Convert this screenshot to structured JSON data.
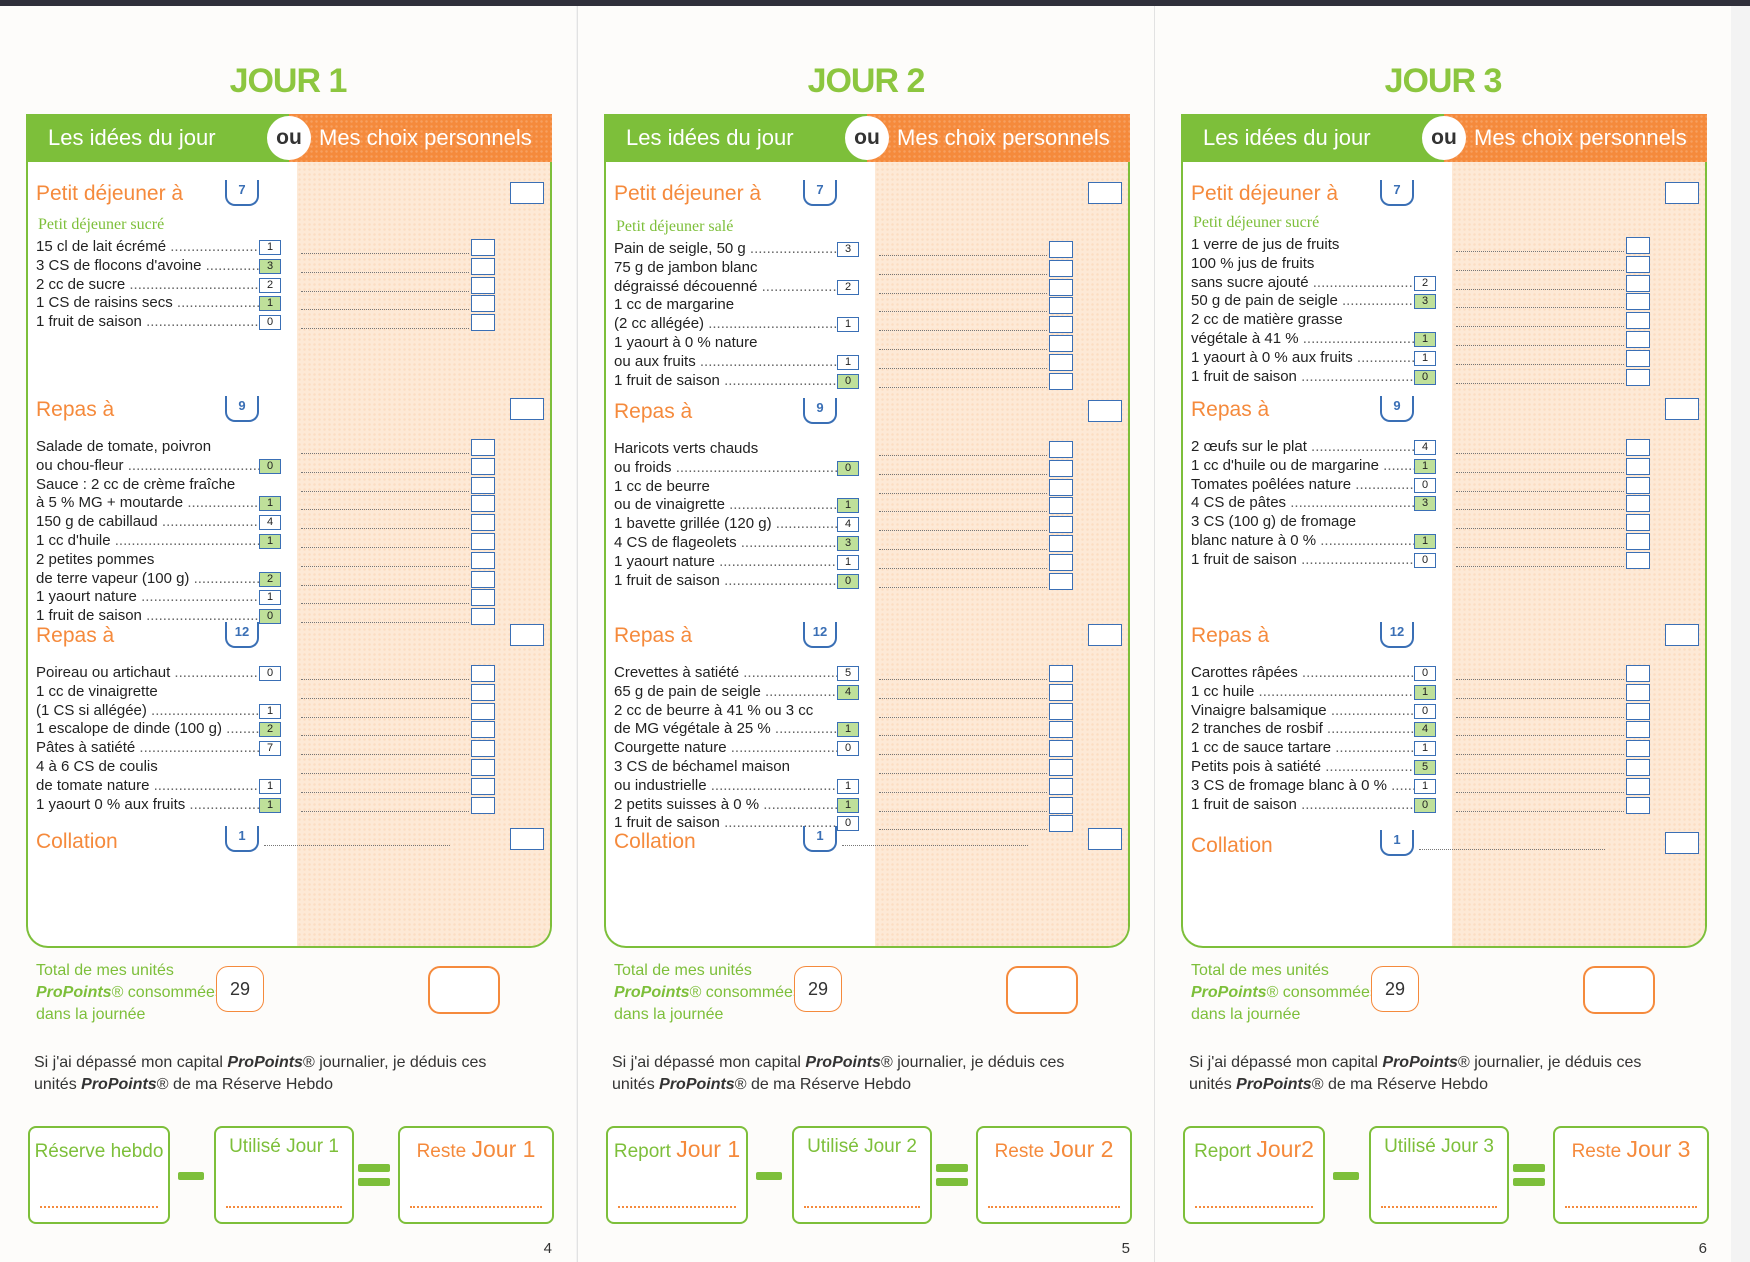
{
  "pages": [
    {
      "title": "JOUR 1",
      "tab_left": "Les idées du jour",
      "tab_ou": "ou",
      "tab_right": "Mes choix personnels",
      "meals": [
        {
          "label": "Petit déjeuner à",
          "units": "7",
          "subtitle": "Petit déjeuner sucré",
          "items": [
            {
              "text": "15 cl de lait écrémé",
              "pts": "1",
              "dots": true
            },
            {
              "text": "3 CS de flocons d'avoine",
              "pts": "3",
              "dots": true
            },
            {
              "text": "2 cc de sucre",
              "pts": "2",
              "dots": true
            },
            {
              "text": "1 CS de raisins secs",
              "pts": "1",
              "dots": true
            },
            {
              "text": "1 fruit de saison",
              "pts": "0",
              "dots": true
            }
          ]
        },
        {
          "label": "Repas à",
          "units": "9",
          "subtitle": "",
          "items": [
            {
              "text": "Salade de tomate, poivron",
              "pts": "",
              "dots": false
            },
            {
              "text": "ou chou-fleur",
              "pts": "0",
              "dots": true
            },
            {
              "text": "Sauce : 2 cc de crème fraîche",
              "pts": "",
              "dots": false
            },
            {
              "text": "à 5 % MG + moutarde",
              "pts": "1",
              "dots": true
            },
            {
              "text": "150 g de cabillaud",
              "pts": "4",
              "dots": true
            },
            {
              "text": "1 cc d'huile",
              "pts": "1",
              "dots": true
            },
            {
              "text": "2 petites pommes",
              "pts": "",
              "dots": false
            },
            {
              "text": "de terre vapeur (100 g)",
              "pts": "2",
              "dots": true
            },
            {
              "text": "1 yaourt nature",
              "pts": "1",
              "dots": true
            },
            {
              "text": "1 fruit de saison",
              "pts": "0",
              "dots": true
            }
          ]
        },
        {
          "label": "Repas à",
          "units": "12",
          "subtitle": "",
          "items": [
            {
              "text": "Poireau ou artichaut",
              "pts": "0",
              "dots": true
            },
            {
              "text": "1 cc de vinaigrette",
              "pts": "",
              "dots": false
            },
            {
              "text": "(1 CS si allégée)",
              "pts": "1",
              "dots": true
            },
            {
              "text": "1 escalope de dinde (100 g)",
              "pts": "2",
              "dots": true
            },
            {
              "text": "Pâtes à satiété",
              "pts": "7",
              "dots": true
            },
            {
              "text": "4 à 6 CS de coulis",
              "pts": "",
              "dots": false
            },
            {
              "text": "de tomate nature",
              "pts": "1",
              "dots": true
            },
            {
              "text": "1 yaourt 0 % aux fruits",
              "pts": "1",
              "dots": true
            }
          ]
        }
      ],
      "collation_label": "Collation",
      "collation_units": "1",
      "total_line1": "Total de mes unités",
      "total_brand": "ProPoints",
      "total_line2": "® consommées",
      "total_line3": "dans la journée",
      "total_value": "29",
      "note_a": "Si j'ai dépassé mon capital ",
      "note_brand": "ProPoints",
      "note_b": "® journalier, je déduis ces",
      "note_c": "unités ",
      "note_brand2": "ProPoints",
      "note_d": "® de ma Réserve Hebdo",
      "box1_a": "Réserve hebdo",
      "box1_b": "",
      "box2": "Utilisé Jour 1",
      "box3_a": "Reste ",
      "box3_b": "Jour 1",
      "page_number": "4"
    },
    {
      "title": "JOUR 2",
      "tab_left": "Les idées du jour",
      "tab_ou": "ou",
      "tab_right": "Mes choix personnels",
      "meals": [
        {
          "label": "Petit déjeuner à",
          "units": "7",
          "subtitle": "Petit déjeuner salé",
          "items": [
            {
              "text": "Pain de seigle, 50 g",
              "pts": "3",
              "dots": true
            },
            {
              "text": "75 g de jambon blanc",
              "pts": "",
              "dots": false
            },
            {
              "text": "dégraissé découenné",
              "pts": "2",
              "dots": true
            },
            {
              "text": "1 cc de margarine",
              "pts": "",
              "dots": false
            },
            {
              "text": "(2 cc allégée)",
              "pts": "1",
              "dots": true
            },
            {
              "text": "1 yaourt à 0 % nature",
              "pts": "",
              "dots": false
            },
            {
              "text": "ou aux fruits",
              "pts": "1",
              "dots": true
            },
            {
              "text": "1 fruit de saison",
              "pts": "0",
              "dots": true
            }
          ]
        },
        {
          "label": "Repas à",
          "units": "9",
          "subtitle": "",
          "items": [
            {
              "text": "Haricots verts chauds",
              "pts": "",
              "dots": false
            },
            {
              "text": "ou froids",
              "pts": "0",
              "dots": true
            },
            {
              "text": "1 cc de beurre",
              "pts": "",
              "dots": false
            },
            {
              "text": "ou de vinaigrette",
              "pts": "1",
              "dots": true
            },
            {
              "text": "1 bavette grillée (120 g)",
              "pts": "4",
              "dots": true
            },
            {
              "text": "4 CS de flageolets",
              "pts": "3",
              "dots": true
            },
            {
              "text": "1 yaourt nature",
              "pts": "1",
              "dots": true
            },
            {
              "text": "1 fruit de saison",
              "pts": "0",
              "dots": true
            }
          ]
        },
        {
          "label": "Repas à",
          "units": "12",
          "subtitle": "",
          "items": [
            {
              "text": "Crevettes à satiété",
              "pts": "5",
              "dots": true
            },
            {
              "text": "65 g de pain de seigle",
              "pts": "4",
              "dots": true
            },
            {
              "text": "2 cc de beurre à 41 % ou 3 cc",
              "pts": "",
              "dots": false
            },
            {
              "text": "de MG végétale à 25 %",
              "pts": "1",
              "dots": true
            },
            {
              "text": "Courgette nature",
              "pts": "0",
              "dots": true
            },
            {
              "text": "3 CS de béchamel maison",
              "pts": "",
              "dots": false
            },
            {
              "text": "ou industrielle",
              "pts": "1",
              "dots": true
            },
            {
              "text": "2 petits suisses à 0 %",
              "pts": "1",
              "dots": true
            },
            {
              "text": "1 fruit de saison",
              "pts": "0",
              "dots": true
            }
          ]
        }
      ],
      "collation_label": "Collation",
      "collation_units": "1",
      "total_line1": "Total de mes unités",
      "total_brand": "ProPoints",
      "total_line2": "® consommées",
      "total_line3": "dans la journée",
      "total_value": "29",
      "note_a": "Si j'ai dépassé mon capital ",
      "note_brand": "ProPoints",
      "note_b": "® journalier, je déduis ces",
      "note_c": "unités ",
      "note_brand2": "ProPoints",
      "note_d": "® de ma Réserve Hebdo",
      "box1_a": "Report ",
      "box1_b": "Jour 1",
      "box2": "Utilisé Jour 2",
      "box3_a": "Reste ",
      "box3_b": "Jour 2",
      "page_number": "5"
    },
    {
      "title": "JOUR 3",
      "tab_left": "Les idées du jour",
      "tab_ou": "ou",
      "tab_right": "Mes choix personnels",
      "meals": [
        {
          "label": "Petit déjeuner à",
          "units": "7",
          "subtitle": "Petit déjeuner sucré",
          "items": [
            {
              "text": "1 verre de jus de fruits",
              "pts": "",
              "dots": false
            },
            {
              "text": "100 % jus de fruits",
              "pts": "",
              "dots": false
            },
            {
              "text": "sans sucre ajouté",
              "pts": "2",
              "dots": true
            },
            {
              "text": "50 g de pain de seigle",
              "pts": "3",
              "dots": true
            },
            {
              "text": "2 cc de matière grasse",
              "pts": "",
              "dots": false
            },
            {
              "text": "végétale à 41 %",
              "pts": "1",
              "dots": true
            },
            {
              "text": "1 yaourt à 0 % aux fruits",
              "pts": "1",
              "dots": true
            },
            {
              "text": "1 fruit de saison",
              "pts": "0",
              "dots": true
            }
          ]
        },
        {
          "label": "Repas à",
          "units": "9",
          "subtitle": "",
          "items": [
            {
              "text": "2 œufs sur le plat",
              "pts": "4",
              "dots": true
            },
            {
              "text": "1 cc d'huile ou de margarine",
              "pts": "1",
              "dots": true
            },
            {
              "text": "Tomates poêlées nature",
              "pts": "0",
              "dots": true
            },
            {
              "text": "4 CS de pâtes",
              "pts": "3",
              "dots": true
            },
            {
              "text": "3 CS (100 g) de fromage",
              "pts": "",
              "dots": false
            },
            {
              "text": "blanc nature à 0 %",
              "pts": "1",
              "dots": true
            },
            {
              "text": "1 fruit de saison",
              "pts": "0",
              "dots": true
            }
          ]
        },
        {
          "label": "Repas à",
          "units": "12",
          "subtitle": "",
          "items": [
            {
              "text": "Carottes râpées",
              "pts": "0",
              "dots": true
            },
            {
              "text": "1 cc huile",
              "pts": "1",
              "dots": true
            },
            {
              "text": "Vinaigre balsamique",
              "pts": "0",
              "dots": true
            },
            {
              "text": "2 tranches de rosbif",
              "pts": "4",
              "dots": true
            },
            {
              "text": "1 cc de sauce tartare",
              "pts": "1",
              "dots": true
            },
            {
              "text": "Petits pois à satiété",
              "pts": "5",
              "dots": true
            },
            {
              "text": "3 CS de fromage blanc à 0 %",
              "pts": "1",
              "dots": true
            },
            {
              "text": "1 fruit de saison",
              "pts": "0",
              "dots": true
            }
          ]
        }
      ],
      "collation_label": "Collation",
      "collation_units": "1",
      "total_line1": "Total de mes unités",
      "total_brand": "ProPoints",
      "total_line2": "® consommées",
      "total_line3": "dans la journée",
      "total_value": "29",
      "note_a": "Si j'ai dépassé mon capital ",
      "note_brand": "ProPoints",
      "note_b": "® journalier, je déduis ces",
      "note_c": "unités ",
      "note_brand2": "ProPoints",
      "note_d": "® de ma Réserve Hebdo",
      "box1_a": "Report ",
      "box1_b": "Jour2",
      "box2": "Utilisé Jour 3",
      "box3_a": "Reste ",
      "box3_b": "Jour 3",
      "page_number": "6"
    }
  ],
  "colors": {
    "green": "#7dbf3a",
    "orange": "#f58a3c",
    "blue": "#3a6fb5"
  }
}
